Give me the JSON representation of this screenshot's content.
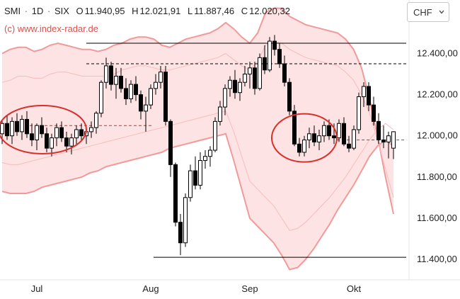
{
  "header": {
    "symbol": "SMI",
    "separator": "·",
    "interval": "1D",
    "exchange": "SIX",
    "open_label": "O",
    "open": "11.940,95",
    "high_label": "H",
    "high": "12.021,91",
    "low_label": "L",
    "low": "11.887,46",
    "close_label": "C",
    "close": "12.020,32",
    "credit": "(c) www.index-radar.de"
  },
  "currency": {
    "selected": "CHF",
    "icon": "chevron-down-icon"
  },
  "colors": {
    "band_fill": "#fde3e3",
    "band_line": "#f19a9a",
    "inner_band": "#f7bcbc",
    "ellipse": "#d9302c",
    "candle": "#000000",
    "text": "#222222",
    "credit": "#d9534f",
    "level_line": "#000000",
    "last_price_line": "#d9302c"
  },
  "chart_data": {
    "type": "candlestick",
    "title": "",
    "xlabel": "",
    "ylabel": "",
    "x_ticks": [
      "Jul",
      "Aug",
      "Sep",
      "Okt"
    ],
    "y_ticks": [
      "11.400,00",
      "11.600,00",
      "11.800,00",
      "12.000,00",
      "12.200,00",
      "12.400,00"
    ],
    "y_tick_values": [
      11400,
      11600,
      11800,
      12000,
      12200,
      12400
    ],
    "ylim": [
      11300,
      12660
    ],
    "candles": [
      [
        12010,
        12080,
        11960,
        12060
      ],
      [
        12060,
        12100,
        11980,
        12000
      ],
      [
        12000,
        12090,
        11960,
        12070
      ],
      [
        12070,
        12110,
        12000,
        12020
      ],
      [
        12020,
        12100,
        11980,
        12080
      ],
      [
        12080,
        12120,
        11990,
        12010
      ],
      [
        12010,
        12060,
        11950,
        11980
      ],
      [
        11980,
        12060,
        11930,
        12050
      ],
      [
        12050,
        12090,
        11990,
        12010
      ],
      [
        12010,
        12040,
        11920,
        11940
      ],
      [
        11940,
        12010,
        11900,
        11990
      ],
      [
        11990,
        12060,
        11950,
        12040
      ],
      [
        12040,
        12070,
        11970,
        11990
      ],
      [
        11990,
        12020,
        11920,
        11950
      ],
      [
        11950,
        12010,
        11910,
        11990
      ],
      [
        11990,
        12050,
        11960,
        12030
      ],
      [
        12030,
        12060,
        11980,
        12000
      ],
      [
        12000,
        12040,
        11960,
        12020
      ],
      [
        12020,
        12070,
        11990,
        12040
      ],
      [
        12040,
        12120,
        12010,
        12110
      ],
      [
        12110,
        12270,
        12090,
        12260
      ],
      [
        12260,
        12380,
        12230,
        12340
      ],
      [
        12340,
        12360,
        12220,
        12250
      ],
      [
        12250,
        12330,
        12180,
        12290
      ],
      [
        12290,
        12330,
        12210,
        12230
      ],
      [
        12230,
        12280,
        12150,
        12180
      ],
      [
        12180,
        12270,
        12160,
        12250
      ],
      [
        12250,
        12290,
        12170,
        12200
      ],
      [
        12200,
        12220,
        12080,
        12120
      ],
      [
        12120,
        12190,
        12020,
        12150
      ],
      [
        12150,
        12250,
        12130,
        12230
      ],
      [
        12230,
        12300,
        12200,
        12260
      ],
      [
        12260,
        12340,
        12230,
        12310
      ],
      [
        12310,
        12340,
        12050,
        12070
      ],
      [
        12070,
        12080,
        11800,
        11860
      ],
      [
        11860,
        11870,
        11560,
        11580
      ],
      [
        11580,
        11620,
        11420,
        11480
      ],
      [
        11480,
        11720,
        11460,
        11700
      ],
      [
        11700,
        11860,
        11680,
        11830
      ],
      [
        11830,
        11900,
        11740,
        11760
      ],
      [
        11760,
        11920,
        11740,
        11880
      ],
      [
        11880,
        11930,
        11840,
        11900
      ],
      [
        11900,
        11950,
        11850,
        11930
      ],
      [
        11930,
        12090,
        11920,
        12070
      ],
      [
        12070,
        12170,
        12050,
        12140
      ],
      [
        12140,
        12250,
        12100,
        12230
      ],
      [
        12230,
        12290,
        12190,
        12270
      ],
      [
        12270,
        12320,
        12180,
        12210
      ],
      [
        12210,
        12280,
        12170,
        12260
      ],
      [
        12260,
        12340,
        12240,
        12300
      ],
      [
        12300,
        12360,
        12230,
        12330
      ],
      [
        12330,
        12360,
        12200,
        12230
      ],
      [
        12230,
        12400,
        12220,
        12380
      ],
      [
        12380,
        12440,
        12300,
        12320
      ],
      [
        12320,
        12480,
        12310,
        12460
      ],
      [
        12460,
        12490,
        12390,
        12420
      ],
      [
        12420,
        12450,
        12330,
        12350
      ],
      [
        12350,
        12390,
        12240,
        12260
      ],
      [
        12260,
        12280,
        12100,
        12120
      ],
      [
        12120,
        12150,
        11950,
        11960
      ],
      [
        11960,
        11990,
        11900,
        11920
      ],
      [
        11920,
        12000,
        11900,
        11980
      ],
      [
        11980,
        12040,
        11940,
        12010
      ],
      [
        12010,
        12050,
        11950,
        11970
      ],
      [
        11970,
        12030,
        11930,
        12000
      ],
      [
        12000,
        12070,
        11970,
        12050
      ],
      [
        12050,
        12080,
        11980,
        12000
      ],
      [
        12000,
        12060,
        11960,
        11990
      ],
      [
        11990,
        12080,
        11970,
        12060
      ],
      [
        12060,
        12090,
        11950,
        11960
      ],
      [
        11960,
        12000,
        11920,
        11940
      ],
      [
        11940,
        12050,
        11930,
        12030
      ],
      [
        12030,
        12210,
        12010,
        12190
      ],
      [
        12190,
        12260,
        12140,
        12240
      ],
      [
        12240,
        12260,
        12120,
        12150
      ],
      [
        12150,
        12190,
        12050,
        12070
      ],
      [
        12070,
        12110,
        11960,
        11980
      ],
      [
        11980,
        12050,
        11940,
        11970
      ],
      [
        11970,
        12020,
        11890,
        12000
      ],
      [
        11940,
        12022,
        11887,
        12020
      ]
    ],
    "bands": {
      "outer_upper": [
        12400,
        12420,
        12430,
        12430,
        12410,
        12420,
        12440,
        12450,
        12440,
        12430,
        12420,
        12420,
        12410,
        12420,
        12440,
        12450,
        12470,
        12480,
        12480,
        12470,
        12440,
        12430,
        12450,
        12470,
        12480,
        12490,
        12500,
        12520,
        12550,
        12520,
        12480,
        12450,
        12500,
        12600,
        12620,
        12620,
        12580,
        12560,
        12540,
        12530,
        12520,
        12510,
        12500,
        12470,
        12420,
        12330,
        12180,
        12000,
        11800,
        11620
      ],
      "outer_lower": [
        11730,
        11720,
        11720,
        11720,
        11730,
        11750,
        11760,
        11770,
        11780,
        11790,
        11800,
        11820,
        11830,
        11850,
        11860,
        11870,
        11880,
        11890,
        11900,
        11910,
        11920,
        11940,
        11950,
        11960,
        11970,
        11980,
        11990,
        12000,
        12010,
        11880,
        11740,
        11600,
        11560,
        11520,
        11480,
        11420,
        11350,
        11360,
        11400,
        11450,
        11510,
        11570,
        11640,
        11700,
        11760,
        11830,
        11900,
        11950,
        11980,
        11950
      ],
      "inner_upper": [
        12260,
        12270,
        12290,
        12290,
        12280,
        12280,
        12300,
        12310,
        12310,
        12300,
        12290,
        12290,
        12290,
        12290,
        12300,
        12320,
        12330,
        12340,
        12340,
        12330,
        12320,
        12320,
        12330,
        12340,
        12350,
        12360,
        12370,
        12380,
        12400,
        12370,
        12340,
        12320,
        12360,
        12440,
        12460,
        12450,
        12420,
        12400,
        12380,
        12370,
        12360,
        12350,
        12340,
        12310,
        12270,
        12200,
        12110,
        11980,
        11840,
        11700
      ],
      "inner_lower": [
        11870,
        11860,
        11860,
        11870,
        11880,
        11890,
        11900,
        11910,
        11920,
        11930,
        11940,
        11950,
        11960,
        11970,
        11980,
        11990,
        12000,
        12010,
        12020,
        12030,
        12040,
        12050,
        12060,
        12070,
        12080,
        12090,
        12100,
        12110,
        12120,
        12020,
        11900,
        11780,
        11740,
        11700,
        11660,
        11600,
        11540,
        11550,
        11580,
        11620,
        11660,
        11700,
        11750,
        11800,
        11860,
        11920,
        11980,
        12030,
        12060,
        12030
      ]
    },
    "levels": [
      {
        "value": 12450,
        "style": "solid",
        "color": "#000000"
      },
      {
        "value": 12350,
        "style": "dashed",
        "color": "#000000"
      },
      {
        "value": 11410,
        "style": "solid",
        "color": "#000000"
      },
      {
        "value": 12050,
        "style": "dashed",
        "color": "#d9302c"
      },
      {
        "value": 11980,
        "style": "dashed",
        "color": "#d9302c"
      }
    ],
    "grid": false,
    "legend": "none"
  }
}
